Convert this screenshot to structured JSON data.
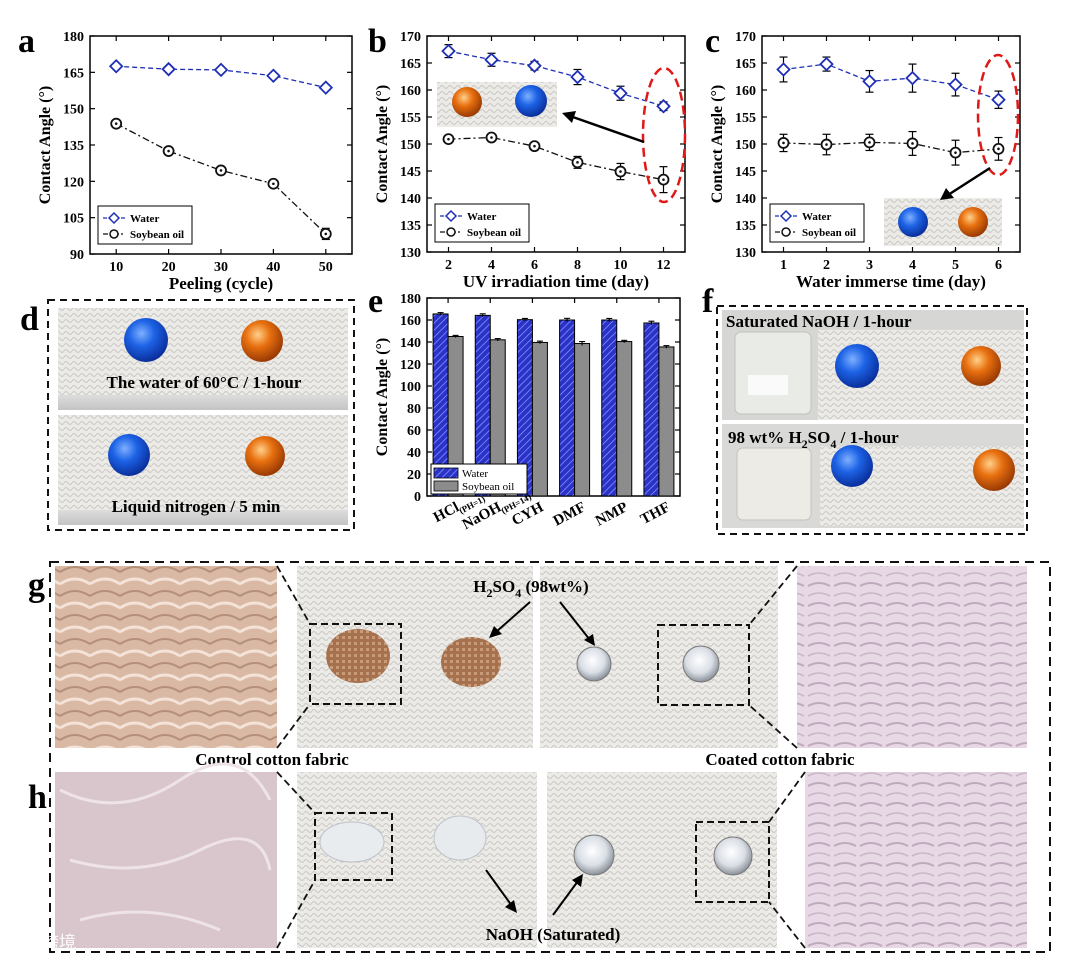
{
  "panel_letters": {
    "a": "a",
    "b": "b",
    "c": "c",
    "d": "d",
    "e": "e",
    "f": "f",
    "g": "g",
    "h": "h"
  },
  "colors": {
    "water": "#1f2fb5",
    "oil": "#111111",
    "bar_water": "#2a32c8",
    "bar_oil": "#8c8c8c",
    "drop_blue": "#1560e8",
    "drop_orange": "#e06a0e",
    "ellipse": "#e01818"
  },
  "chart_data": [
    {
      "id": "a",
      "type": "line",
      "title": "",
      "xlabel": "Peeling (cycle)",
      "ylabel": "Contact Angle (°)",
      "x": [
        10,
        20,
        30,
        40,
        50
      ],
      "xlim": [
        5,
        55
      ],
      "ylim": [
        90,
        180
      ],
      "xticks": [
        "10",
        "20",
        "30",
        "40",
        "50"
      ],
      "yticks": [
        "90",
        "105",
        "120",
        "135",
        "150",
        "165",
        "180"
      ],
      "series": [
        {
          "name": "Water",
          "marker": "diamond",
          "values": [
            167.5,
            166.3,
            166,
            163.6,
            158.7
          ],
          "errors": [
            0.6,
            0.6,
            0.6,
            0.8,
            1.0
          ]
        },
        {
          "name": "Soybean oil",
          "marker": "circle",
          "values": [
            143.8,
            132.5,
            124.5,
            119,
            98.3
          ],
          "errors": [
            0.8,
            0.8,
            0.9,
            0.8,
            2.3
          ]
        }
      ],
      "legend_loc": "bottom-left"
    },
    {
      "id": "b",
      "type": "line",
      "title": "",
      "xlabel": "UV irradiation time (day)",
      "ylabel": "Contact Angle (°)",
      "x": [
        2,
        4,
        6,
        8,
        10,
        12
      ],
      "xlim": [
        1,
        13
      ],
      "ylim": [
        130,
        170
      ],
      "xticks": [
        "2",
        "4",
        "6",
        "8",
        "10",
        "12"
      ],
      "yticks": [
        "130",
        "135",
        "140",
        "145",
        "150",
        "155",
        "160",
        "165",
        "170"
      ],
      "series": [
        {
          "name": "Water",
          "marker": "diamond",
          "values": [
            167.2,
            165.6,
            164.5,
            162.4,
            159.4,
            157
          ],
          "errors": [
            1.2,
            1.2,
            0.8,
            1.4,
            1.3,
            0.8
          ]
        },
        {
          "name": "Soybean oil",
          "marker": "circle",
          "values": [
            150.9,
            151.2,
            149.6,
            146.6,
            144.9,
            143.4
          ],
          "errors": [
            0.5,
            0.6,
            0.6,
            1.1,
            1.5,
            2.4
          ]
        }
      ],
      "legend_loc": "bottom-left"
    },
    {
      "id": "c",
      "type": "line",
      "title": "",
      "xlabel": "Water immerse time (day)",
      "ylabel": "Contact Angle (°)",
      "x": [
        1,
        2,
        3,
        4,
        5,
        6
      ],
      "xlim": [
        0.5,
        6.5
      ],
      "ylim": [
        130,
        170
      ],
      "xticks": [
        "1",
        "2",
        "3",
        "4",
        "5",
        "6"
      ],
      "yticks": [
        "130",
        "135",
        "140",
        "145",
        "150",
        "155",
        "160",
        "165",
        "170"
      ],
      "series": [
        {
          "name": "Water",
          "marker": "diamond",
          "values": [
            163.8,
            164.8,
            161.6,
            162.2,
            161,
            158.2
          ],
          "errors": [
            2.3,
            1.3,
            2,
            2.6,
            2.1,
            1.6
          ]
        },
        {
          "name": "Soybean oil",
          "marker": "circle",
          "values": [
            150.2,
            149.9,
            150.3,
            150.1,
            148.4,
            149.1
          ],
          "errors": [
            1.6,
            1.9,
            1.5,
            2.2,
            2.3,
            2.1
          ]
        }
      ],
      "legend_loc": "bottom-left"
    },
    {
      "id": "e",
      "type": "bar",
      "title": "",
      "xlabel": "",
      "ylabel": "Contact Angle (°)",
      "categories": [
        "HCl",
        "NaOH",
        "CYH",
        "DMF",
        "NMP",
        "THF"
      ],
      "category_subscripts": [
        "(PH=1)",
        "(PH=14)",
        "",
        "",
        "",
        ""
      ],
      "ylim": [
        0,
        180
      ],
      "yticks": [
        "0",
        "20",
        "40",
        "60",
        "80",
        "100",
        "120",
        "140",
        "160",
        "180"
      ],
      "series": [
        {
          "name": "Water",
          "values": [
            165.5,
            164.2,
            160.3,
            160,
            160,
            157.3
          ],
          "errors": [
            1.2,
            1.4,
            1.1,
            1.5,
            1.4,
            1.6
          ]
        },
        {
          "name": "Soybean oil",
          "values": [
            145,
            142,
            139.6,
            138.6,
            140.4,
            135.5
          ],
          "errors": [
            1,
            1.1,
            1.2,
            1.8,
            1.1,
            1.2
          ]
        }
      ],
      "legend_loc": "bottom-left"
    }
  ],
  "photos": {
    "d_top_label": "The water of 60°C / 1-hour",
    "d_bottom_label": "Liquid nitrogen / 5 min",
    "f_top_label": "Saturated NaOH / 1-hour",
    "f_bottom_label_pre": "98 wt% H",
    "f_bottom_label_sub": "2",
    "f_bottom_label_mid": "SO",
    "f_bottom_label_sub2": "4",
    "f_bottom_label_post": " / 1-hour",
    "g_h2so4_pre": "H",
    "g_h2so4_sub": "2",
    "g_h2so4_mid": "SO",
    "g_h2so4_sub2": "4",
    "g_h2so4_post": " (98wt%)",
    "control_label": "Control cotton fabric",
    "coated_label": "Coated cotton fabric",
    "naoh_label": "NaOH (Saturated)"
  },
  "watermark": "大数跨境"
}
